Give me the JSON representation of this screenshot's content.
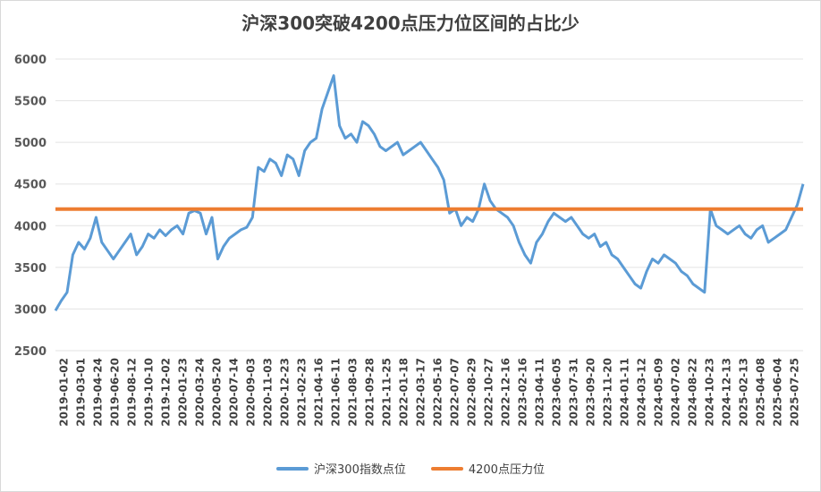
{
  "chart_data": {
    "type": "line",
    "title": "沪深300突破4200点压力位区间的占比少",
    "xlabel": "",
    "ylabel": "",
    "ylim": [
      2500,
      6000
    ],
    "yticks": [
      2500,
      3000,
      3500,
      4000,
      4500,
      5000,
      5500,
      6000
    ],
    "x_tick_labels": [
      "2019-01-02",
      "2019-03-01",
      "2019-04-24",
      "2019-06-20",
      "2019-08-12",
      "2019-10-10",
      "2019-12-02",
      "2020-01-23",
      "2020-03-24",
      "2020-05-20",
      "2020-07-14",
      "2020-09-03",
      "2020-11-03",
      "2020-12-23",
      "2021-02-23",
      "2021-04-16",
      "2021-06-11",
      "2021-08-03",
      "2021-09-28",
      "2021-11-25",
      "2022-01-18",
      "2022-03-17",
      "2022-05-16",
      "2022-07-07",
      "2022-08-29",
      "2022-10-27",
      "2022-12-16",
      "2023-02-16",
      "2023-04-11",
      "2023-06-05",
      "2023-07-31",
      "2023-09-20",
      "2023-11-20",
      "2024-01-11",
      "2024-03-12",
      "2024-05-09",
      "2024-07-02",
      "2024-08-22",
      "2024-10-23",
      "2024-12-13",
      "2025-02-13",
      "2025-04-08",
      "2025-06-04",
      "2025-07-25"
    ],
    "series": [
      {
        "name": "沪深300指数点位",
        "color": "#5b9bd5",
        "values": [
          2980,
          3100,
          3200,
          3650,
          3800,
          3720,
          3850,
          4100,
          3800,
          3700,
          3600,
          3700,
          3800,
          3900,
          3650,
          3750,
          3900,
          3850,
          3950,
          3880,
          3950,
          4000,
          3900,
          4150,
          4180,
          4150,
          3900,
          4100,
          3600,
          3750,
          3850,
          3900,
          3950,
          3980,
          4100,
          4700,
          4650,
          4800,
          4750,
          4600,
          4850,
          4800,
          4600,
          4900,
          5000,
          5050,
          5400,
          5600,
          5800,
          5200,
          5050,
          5100,
          5000,
          5250,
          5200,
          5100,
          4950,
          4900,
          4950,
          5000,
          4850,
          4900,
          4950,
          5000,
          4900,
          4800,
          4700,
          4550,
          4150,
          4200,
          4000,
          4100,
          4050,
          4200,
          4500,
          4300,
          4200,
          4150,
          4100,
          4000,
          3800,
          3650,
          3550,
          3800,
          3900,
          4050,
          4150,
          4100,
          4050,
          4100,
          4000,
          3900,
          3850,
          3900,
          3750,
          3800,
          3650,
          3600,
          3500,
          3400,
          3300,
          3250,
          3450,
          3600,
          3550,
          3650,
          3600,
          3550,
          3450,
          3400,
          3300,
          3250,
          3200,
          4200,
          4000,
          3950,
          3900,
          3950,
          4000,
          3900,
          3850,
          3950,
          4000,
          3800,
          3850,
          3900,
          3950,
          4100,
          4250,
          4500
        ]
      },
      {
        "name": "4200点压力位",
        "color": "#ed7d31",
        "values": [
          4200,
          4200
        ]
      }
    ],
    "grid": true,
    "legend_position": "bottom"
  }
}
